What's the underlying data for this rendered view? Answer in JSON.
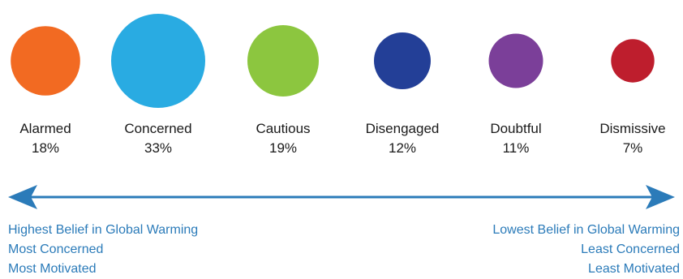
{
  "chart_data": {
    "type": "bubble",
    "categories": [
      "Alarmed",
      "Concerned",
      "Cautious",
      "Disengaged",
      "Doubtful",
      "Dismissive"
    ],
    "values": [
      18,
      33,
      19,
      12,
      11,
      7
    ],
    "value_labels": [
      "18%",
      "33%",
      "19%",
      "12%",
      "11%",
      "7%"
    ],
    "unit": "%",
    "colors": [
      "#f26a22",
      "#29abe2",
      "#8cc63f",
      "#233f97",
      "#7b3f99",
      "#be1e2d"
    ],
    "axis_color": "#2b7bb9",
    "axis_arrows": "both"
  },
  "annotations": {
    "left": [
      "Highest Belief in Global Warming",
      "Most Concerned",
      "Most Motivated"
    ],
    "right": [
      "Lowest Belief in Global Warming",
      "Least Concerned",
      "Least Motivated"
    ]
  }
}
